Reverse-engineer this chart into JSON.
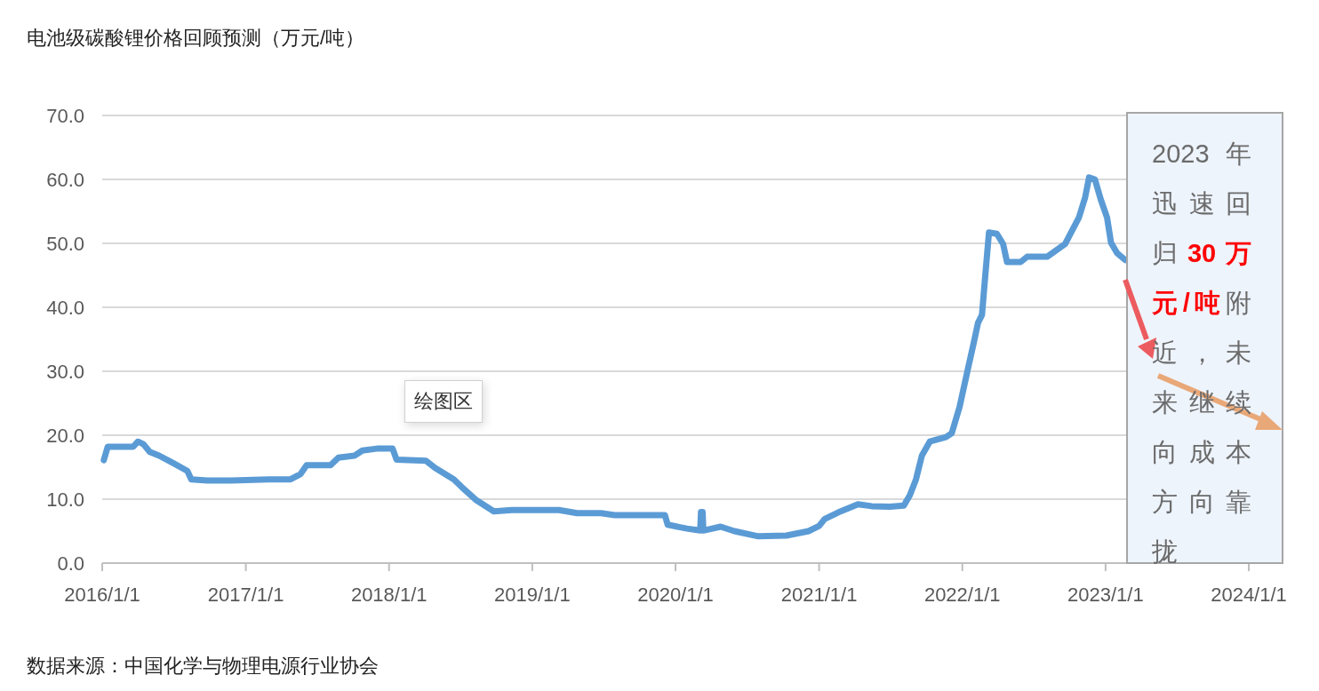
{
  "chart_data": {
    "type": "line",
    "title": "电池级碳酸锂价格回顾预测（万元/吨）",
    "xlim": [
      "2016-01-01",
      "2024-01-01"
    ],
    "xticks": [
      {
        "value": "2016-01-01",
        "label": "2016/1/1"
      },
      {
        "value": "2017-01-01",
        "label": "2017/1/1"
      },
      {
        "value": "2018-01-01",
        "label": "2018/1/1"
      },
      {
        "value": "2019-01-01",
        "label": "2019/1/1"
      },
      {
        "value": "2020-01-01",
        "label": "2020/1/1"
      },
      {
        "value": "2021-01-01",
        "label": "2021/1/1"
      },
      {
        "value": "2022-01-01",
        "label": "2022/1/1"
      },
      {
        "value": "2023-01-01",
        "label": "2023/1/1"
      },
      {
        "value": "2024-01-01",
        "label": "2024/1/1"
      }
    ],
    "ylim": [
      0,
      70
    ],
    "yticks": [
      {
        "value": 0,
        "label": "0.0"
      },
      {
        "value": 10,
        "label": "10.0"
      },
      {
        "value": 20,
        "label": "20.0"
      },
      {
        "value": 30,
        "label": "30.0"
      },
      {
        "value": 40,
        "label": "40.0"
      },
      {
        "value": 50,
        "label": "50.0"
      },
      {
        "value": 60,
        "label": "60.0"
      },
      {
        "value": 70,
        "label": "70.0"
      }
    ],
    "grid": "y",
    "color": "#5b9bd5",
    "x": [
      "2016-01-05",
      "2016-01-15",
      "2016-03-20",
      "2016-04-01",
      "2016-04-15",
      "2016-05-01",
      "2016-05-25",
      "2016-07-01",
      "2016-08-05",
      "2016-08-15",
      "2016-09-25",
      "2016-11-25",
      "2017-02-28",
      "2017-04-25",
      "2017-05-20",
      "2017-06-05",
      "2017-08-05",
      "2017-08-25",
      "2017-10-05",
      "2017-10-25",
      "2017-12-01",
      "2018-01-10",
      "2018-01-20",
      "2018-04-05",
      "2018-04-28",
      "2018-06-15",
      "2018-07-05",
      "2018-08-10",
      "2018-09-25",
      "2018-11-10",
      "2019-03-10",
      "2019-04-25",
      "2019-06-25",
      "2019-07-30",
      "2019-12-05",
      "2019-12-12",
      "2020-01-30",
      "2020-03-04",
      "2020-03-06",
      "2020-03-10",
      "2020-03-12",
      "2020-04-25",
      "2020-05-30",
      "2020-07-30",
      "2020-10-10",
      "2020-12-05",
      "2021-01-01",
      "2021-01-15",
      "2021-02-25",
      "2021-04-10",
      "2021-05-15",
      "2021-06-30",
      "2021-08-05",
      "2021-08-20",
      "2021-09-05",
      "2021-09-20",
      "2021-10-10",
      "2021-11-20",
      "2021-12-05",
      "2021-12-25",
      "2022-01-15",
      "2022-01-30",
      "2022-02-10",
      "2022-02-20",
      "2022-02-28",
      "2022-03-10",
      "2022-03-30",
      "2022-04-15",
      "2022-04-25",
      "2022-05-30",
      "2022-06-15",
      "2022-08-05",
      "2022-09-20",
      "2022-10-05",
      "2022-10-25",
      "2022-11-10",
      "2022-11-20",
      "2022-12-05",
      "2022-12-20",
      "2023-01-05",
      "2023-01-15",
      "2023-01-30",
      "2023-02-20"
    ],
    "values": [
      16.1,
      18.2,
      18.2,
      19.0,
      18.6,
      17.4,
      16.8,
      15.6,
      14.4,
      13.1,
      12.9,
      12.9,
      13.1,
      13.1,
      13.9,
      15.3,
      15.3,
      16.5,
      16.8,
      17.6,
      17.9,
      17.9,
      16.2,
      16.0,
      14.9,
      13.1,
      11.9,
      9.9,
      8.1,
      8.3,
      8.3,
      7.8,
      7.8,
      7.5,
      7.5,
      6.0,
      5.4,
      5.1,
      8.0,
      8.0,
      5.1,
      5.7,
      5.0,
      4.2,
      4.3,
      5.0,
      5.8,
      6.9,
      8.1,
      9.2,
      8.9,
      8.8,
      9.0,
      10.6,
      13.1,
      16.8,
      19.0,
      19.7,
      20.3,
      24.4,
      30.3,
      34.4,
      37.6,
      38.8,
      44.6,
      51.7,
      51.5,
      49.9,
      47.1,
      47.1,
      47.9,
      47.9,
      49.9,
      51.7,
      54.0,
      57.2,
      60.3,
      60.0,
      56.8,
      54.0,
      50.1,
      48.5,
      47.4
    ],
    "annotations": [
      "2023年迅速回归**30万元/吨**附近，未来继续向成本方向靠拢",
      "绘图区",
      "数据来源：中国化学与物理电源行业协会"
    ]
  }
}
